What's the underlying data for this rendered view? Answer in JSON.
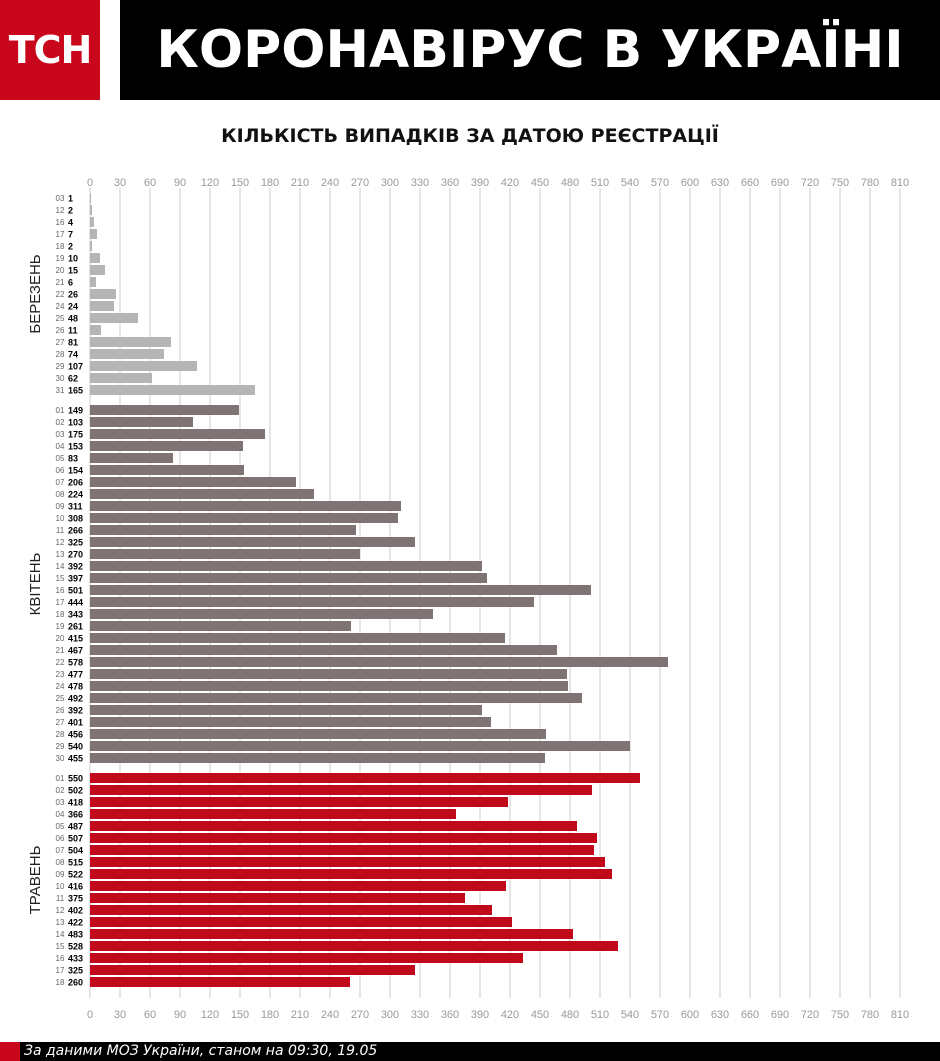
{
  "header": {
    "logo": "ТСН",
    "title": "КОРОНАВІРУС В УКРАЇНІ"
  },
  "footer": {
    "source": "За даними МОЗ України, станом на 09:30, 19.05"
  },
  "chart_data": {
    "type": "bar",
    "orientation": "horizontal",
    "title": "КІЛЬКІСТЬ ВИПАДКІВ ЗА ДАТОЮ РЕЄСТРАЦІЇ",
    "xlim": [
      0,
      810
    ],
    "xticks": [
      0,
      30,
      60,
      90,
      120,
      150,
      180,
      210,
      240,
      270,
      300,
      330,
      360,
      390,
      420,
      450,
      480,
      510,
      540,
      570,
      600,
      630,
      660,
      690,
      720,
      750,
      780,
      810
    ],
    "axis_position": "top and bottom",
    "grid": true,
    "colors": {
      "march": "#b5b5b5",
      "april": "#7f7374",
      "may": "#c0091a",
      "grid": "#cccccc"
    },
    "groups": [
      {
        "name": "БЕРЕЗЕНЬ",
        "color_key": "march",
        "days": [
          "03",
          "12",
          "16",
          "17",
          "18",
          "19",
          "20",
          "21",
          "22",
          "24",
          "25",
          "26",
          "27",
          "28",
          "29",
          "30",
          "31"
        ],
        "values": [
          1,
          2,
          4,
          7,
          2,
          10,
          15,
          6,
          26,
          24,
          48,
          11,
          81,
          74,
          107,
          62,
          165
        ]
      },
      {
        "name": "КВІТЕНЬ",
        "color_key": "april",
        "days": [
          "01",
          "02",
          "03",
          "04",
          "05",
          "06",
          "07",
          "08",
          "09",
          "10",
          "11",
          "12",
          "13",
          "14",
          "15",
          "16",
          "17",
          "18",
          "19",
          "20",
          "21",
          "22",
          "23",
          "24",
          "25",
          "26",
          "27",
          "28",
          "29",
          "30"
        ],
        "values": [
          149,
          103,
          175,
          153,
          83,
          154,
          206,
          224,
          311,
          308,
          266,
          325,
          270,
          392,
          397,
          501,
          444,
          343,
          261,
          415,
          467,
          578,
          477,
          478,
          492,
          392,
          401,
          456,
          540,
          455
        ]
      },
      {
        "name": "ТРАВЕНЬ",
        "color_key": "may",
        "days": [
          "01",
          "02",
          "03",
          "04",
          "05",
          "06",
          "07",
          "08",
          "09",
          "10",
          "11",
          "12",
          "13",
          "14",
          "15",
          "16",
          "17",
          "18"
        ],
        "values": [
          550,
          502,
          418,
          366,
          487,
          507,
          504,
          515,
          522,
          416,
          375,
          402,
          422,
          483,
          528,
          433,
          325,
          260
        ]
      }
    ]
  }
}
